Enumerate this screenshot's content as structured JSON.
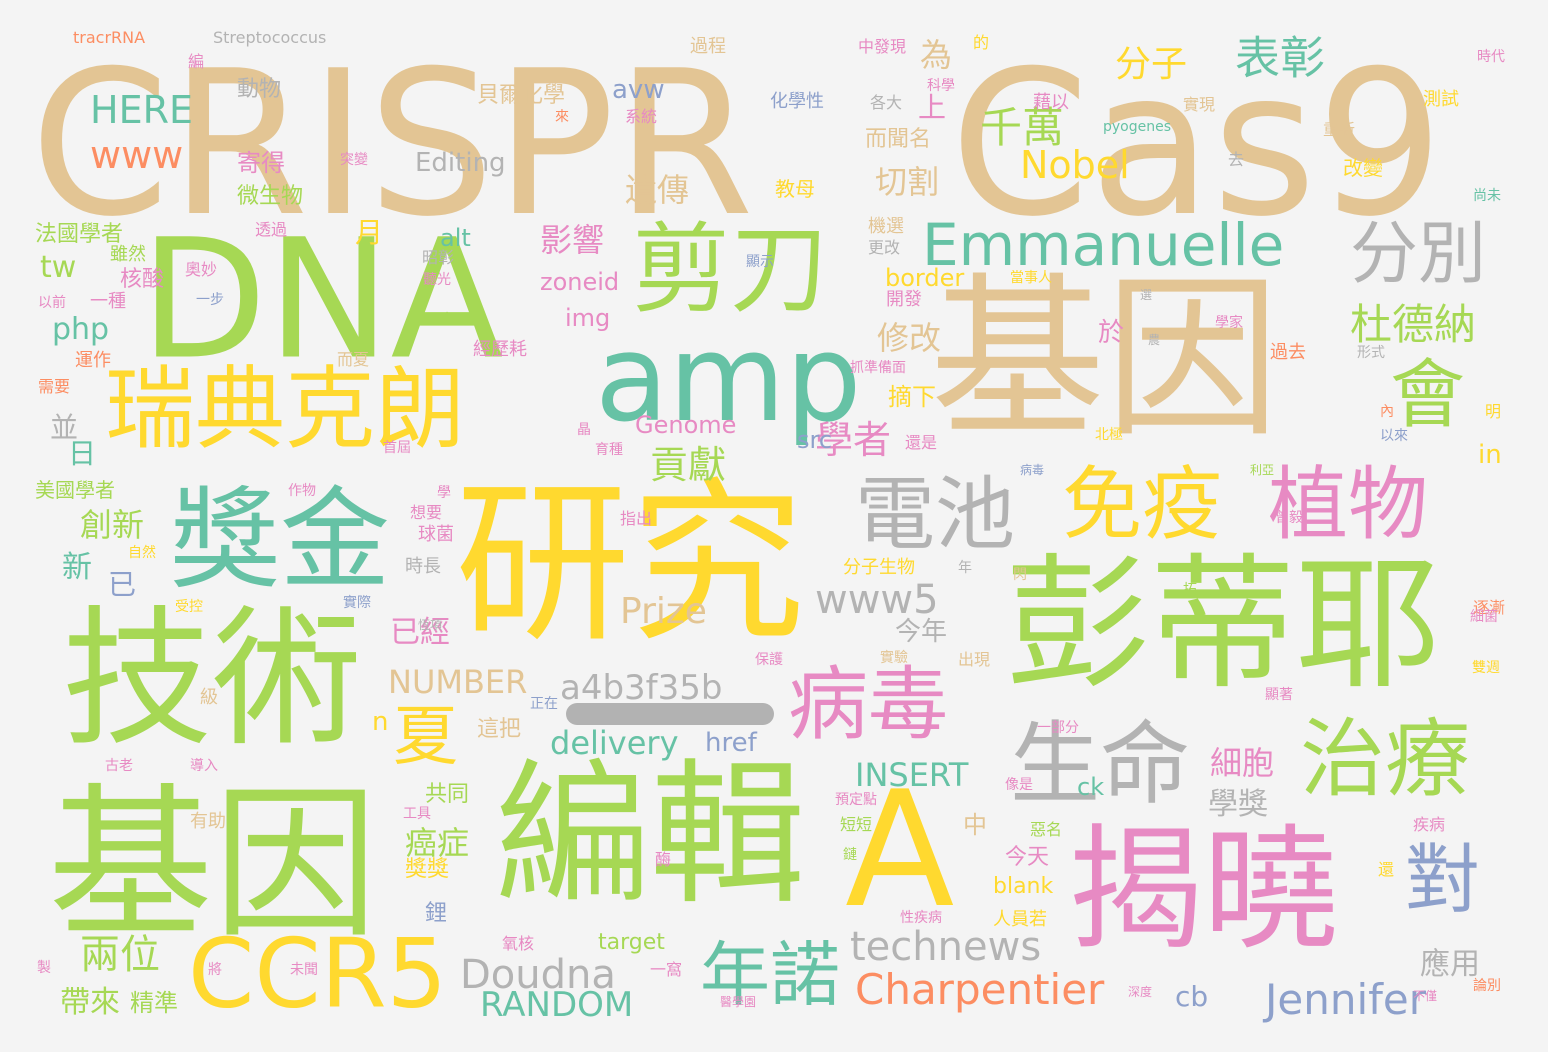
{
  "palette": {
    "tan": "#e3c594",
    "lime": "#a6d854",
    "yellow": "#ffd92f",
    "teal": "#66c2a5",
    "pink": "#e78ac3",
    "gray": "#b3b3b3",
    "orange": "#fc8d62",
    "blue": "#8da0cb"
  },
  "words": [
    {
      "id": "crispr",
      "text": "CRISPR",
      "color": "tan"
    },
    {
      "id": "cas9",
      "text": "Cas9",
      "color": "tan"
    },
    {
      "id": "dna",
      "text": "DNA",
      "color": "lime"
    },
    {
      "id": "jiyin-1",
      "text": "基因",
      "color": "tan"
    },
    {
      "id": "jiyin-2",
      "text": "基因",
      "color": "lime"
    },
    {
      "id": "yanjiu",
      "text": "研究",
      "color": "yellow"
    },
    {
      "id": "jishu",
      "text": "技術",
      "color": "lime"
    },
    {
      "id": "bianji",
      "text": "編輯",
      "color": "lime"
    },
    {
      "id": "pengdiye",
      "text": "彭蒂耶",
      "color": "lime"
    },
    {
      "id": "jiexiao",
      "text": "揭曉",
      "color": "pink"
    },
    {
      "id": "a-letter",
      "text": "A",
      "color": "yellow"
    },
    {
      "id": "jiandao",
      "text": "剪刀",
      "color": "lime"
    },
    {
      "id": "amp",
      "text": "amp",
      "color": "teal"
    },
    {
      "id": "ruidian",
      "text": "瑞典克朗",
      "color": "yellow"
    },
    {
      "id": "jiangjin",
      "text": "獎金",
      "color": "teal"
    },
    {
      "id": "dianchi",
      "text": "電池",
      "color": "gray"
    },
    {
      "id": "mianyi",
      "text": "免疫",
      "color": "yellow"
    },
    {
      "id": "zhiwu",
      "text": "植物",
      "color": "pink"
    },
    {
      "id": "bingdu",
      "text": "病毒",
      "color": "pink"
    },
    {
      "id": "shengming",
      "text": "生命",
      "color": "gray"
    },
    {
      "id": "zhiliao",
      "text": "治療",
      "color": "lime"
    },
    {
      "id": "ccr5",
      "text": "CCR5",
      "color": "yellow"
    },
    {
      "id": "niannuo",
      "text": "年諾",
      "color": "teal"
    },
    {
      "id": "emmanuelle",
      "text": "Emmanuelle",
      "color": "teal"
    },
    {
      "id": "fenbie",
      "text": "分別",
      "color": "gray"
    },
    {
      "id": "hui",
      "text": "會",
      "color": "lime"
    },
    {
      "id": "dui",
      "text": "對",
      "color": "blue"
    },
    {
      "id": "xia",
      "text": "夏",
      "color": "yellow"
    },
    {
      "id": "doudna",
      "text": "Doudna",
      "color": "gray"
    },
    {
      "id": "charpentier",
      "text": "Charpentier",
      "color": "orange"
    },
    {
      "id": "jennifer",
      "text": "Jennifer",
      "color": "blue"
    },
    {
      "id": "technews",
      "text": "technews",
      "color": "gray"
    },
    {
      "id": "random",
      "text": "RANDOM",
      "color": "teal"
    },
    {
      "id": "dudena",
      "text": "杜德納",
      "color": "lime"
    },
    {
      "id": "qianwan",
      "text": "千萬",
      "color": "lime"
    },
    {
      "id": "biaozhang",
      "text": "表彰",
      "color": "teal"
    },
    {
      "id": "fenzi",
      "text": "分子",
      "color": "yellow"
    },
    {
      "id": "www",
      "text": "www",
      "color": "orange"
    },
    {
      "id": "here",
      "text": "HERE",
      "color": "teal"
    },
    {
      "id": "nobel",
      "text": "Nobel",
      "color": "yellow"
    },
    {
      "id": "www5",
      "text": "www5",
      "color": "gray"
    },
    {
      "id": "prize",
      "text": "Prize",
      "color": "tan"
    },
    {
      "id": "a4b3",
      "text": "a4b3f35b",
      "color": "gray"
    },
    {
      "id": "number",
      "text": "NUMBER",
      "color": "tan"
    },
    {
      "id": "delivery",
      "text": "delivery",
      "color": "teal"
    },
    {
      "id": "insert",
      "text": "INSERT",
      "color": "teal"
    },
    {
      "id": "href",
      "text": "href",
      "color": "blue"
    },
    {
      "id": "xuezhe",
      "text": "學者",
      "color": "pink"
    },
    {
      "id": "gongxian",
      "text": "貢獻",
      "color": "lime"
    },
    {
      "id": "liangwei",
      "text": "兩位",
      "color": "lime"
    },
    {
      "id": "cb",
      "text": "cb",
      "color": "blue"
    },
    {
      "id": "editing",
      "text": "Editing",
      "color": "gray"
    },
    {
      "id": "tw",
      "text": "tw",
      "color": "lime"
    },
    {
      "id": "php",
      "text": "php",
      "color": "teal"
    },
    {
      "id": "yingxiang",
      "text": "影響",
      "color": "pink"
    },
    {
      "id": "yichuan",
      "text": "遺傳",
      "color": "tan"
    },
    {
      "id": "qiege",
      "text": "切割",
      "color": "tan"
    },
    {
      "id": "genome",
      "text": "Genome",
      "color": "pink"
    },
    {
      "id": "alt",
      "text": "alt",
      "color": "teal"
    },
    {
      "id": "zoneid",
      "text": "zoneid",
      "color": "pink"
    },
    {
      "id": "img",
      "text": "img",
      "color": "pink"
    },
    {
      "id": "border",
      "text": "border",
      "color": "yellow"
    },
    {
      "id": "avw",
      "text": "avw",
      "color": "blue"
    },
    {
      "id": "src",
      "text": "src",
      "color": "blue"
    },
    {
      "id": "chuangxin",
      "text": "創新",
      "color": "lime"
    },
    {
      "id": "xibao",
      "text": "細胞",
      "color": "pink"
    },
    {
      "id": "xuejiang",
      "text": "學獎",
      "color": "gray"
    },
    {
      "id": "aizheng",
      "text": "癌症",
      "color": "lime"
    },
    {
      "id": "yingyong",
      "text": "應用",
      "color": "gray"
    },
    {
      "id": "dailai",
      "text": "帶來",
      "color": "lime"
    },
    {
      "id": "jingzhun",
      "text": "精準",
      "color": "lime"
    },
    {
      "id": "xiugai",
      "text": "修改",
      "color": "tan"
    },
    {
      "id": "yijing",
      "text": "已經",
      "color": "pink"
    },
    {
      "id": "jinnian",
      "text": "今年",
      "color": "gray"
    },
    {
      "id": "zhaixia",
      "text": "摘下",
      "color": "yellow"
    },
    {
      "id": "ck",
      "text": "ck",
      "color": "teal"
    },
    {
      "id": "zhong",
      "text": "中",
      "color": "tan"
    },
    {
      "id": "jintian",
      "text": "今天",
      "color": "pink"
    },
    {
      "id": "gongtong",
      "text": "共同",
      "color": "lime"
    },
    {
      "id": "zhebai",
      "text": "這把",
      "color": "tan"
    },
    {
      "id": "jiangjiang",
      "text": "獎獎",
      "color": "yellow"
    },
    {
      "id": "blank",
      "text": "blank",
      "color": "yellow"
    },
    {
      "id": "target",
      "text": "target",
      "color": "lime"
    },
    {
      "id": "in",
      "text": "in",
      "color": "yellow"
    },
    {
      "id": "xin",
      "text": "新",
      "color": "teal"
    },
    {
      "id": "ri",
      "text": "日",
      "color": "teal"
    },
    {
      "id": "bing",
      "text": "並",
      "color": "gray"
    },
    {
      "id": "yi",
      "text": "已",
      "color": "blue"
    },
    {
      "id": "n",
      "text": "n",
      "color": "yellow"
    },
    {
      "id": "yu",
      "text": "於",
      "color": "pink"
    },
    {
      "id": "yue",
      "text": "月",
      "color": "yellow"
    },
    {
      "id": "shang",
      "text": "上",
      "color": "pink"
    },
    {
      "id": "wei",
      "text": "為",
      "color": "tan"
    },
    {
      "id": "dongwu",
      "text": "動物",
      "color": "gray"
    },
    {
      "id": "beiguan",
      "text": "貝爾化學",
      "color": "tan"
    },
    {
      "id": "huaxing",
      "text": "化學性",
      "color": "blue"
    },
    {
      "id": "jide",
      "text": "寄得",
      "color": "pink"
    },
    {
      "id": "weishengwu",
      "text": "微生物",
      "color": "lime"
    },
    {
      "id": "jiaomu",
      "text": "教母",
      "color": "yellow"
    },
    {
      "id": "ermingming",
      "text": "而聞名",
      "color": "tan"
    },
    {
      "id": "zhongfaxian",
      "text": "中發現",
      "color": "pink"
    },
    {
      "id": "kexue",
      "text": "科學",
      "color": "pink"
    },
    {
      "id": "geda",
      "text": "各大",
      "color": "gray"
    },
    {
      "id": "shixian",
      "text": "實現",
      "color": "tan"
    },
    {
      "id": "celshi",
      "text": "測試",
      "color": "yellow"
    },
    {
      "id": "chongxin",
      "text": "重新",
      "color": "tan"
    },
    {
      "id": "gaibian",
      "text": "改變",
      "color": "yellow"
    },
    {
      "id": "shangwei",
      "text": "尚未",
      "color": "teal"
    },
    {
      "id": "shidai",
      "text": "時代",
      "color": "pink"
    },
    {
      "id": "guocheng",
      "text": "過程",
      "color": "tan"
    },
    {
      "id": "bian",
      "text": "編",
      "color": "pink"
    },
    {
      "id": "tracrrna",
      "text": "tracrRNA",
      "color": "orange"
    },
    {
      "id": "strep",
      "text": "Streptococcus",
      "color": "gray"
    },
    {
      "id": "pyogenes",
      "text": "pyogenes",
      "color": "teal"
    },
    {
      "id": "de",
      "text": "的",
      "color": "yellow"
    },
    {
      "id": "lai",
      "text": "來",
      "color": "orange"
    },
    {
      "id": "xitong",
      "text": "系統",
      "color": "pink"
    },
    {
      "id": "deyi",
      "text": "藉以",
      "color": "pink"
    },
    {
      "id": "tubian",
      "text": "突變",
      "color": "pink"
    },
    {
      "id": "qu",
      "text": "去",
      "color": "gray"
    },
    {
      "id": "faguo",
      "text": "法國學者",
      "color": "lime"
    },
    {
      "id": "tongguo",
      "text": "透過",
      "color": "pink"
    },
    {
      "id": "suiran",
      "text": "雖然",
      "color": "lime"
    },
    {
      "id": "hesuan",
      "text": "核酸",
      "color": "pink"
    },
    {
      "id": "yibu",
      "text": "一步",
      "color": "blue"
    },
    {
      "id": "aomiao",
      "text": "奧妙",
      "color": "pink"
    },
    {
      "id": "zhaoying",
      "text": "昭彰",
      "color": "gray"
    },
    {
      "id": "xianshi",
      "text": "顯示",
      "color": "blue"
    },
    {
      "id": "jixuan",
      "text": "機選",
      "color": "tan"
    },
    {
      "id": "genggai",
      "text": "更改",
      "color": "gray"
    },
    {
      "id": "kaifa",
      "text": "開發",
      "color": "pink"
    },
    {
      "id": "yunzuo",
      "text": "運作",
      "color": "orange"
    },
    {
      "id": "erxia",
      "text": "而夏",
      "color": "tan"
    },
    {
      "id": "jingli",
      "text": "經歷耗",
      "color": "pink"
    },
    {
      "id": "xuyao",
      "text": "需要",
      "color": "orange"
    },
    {
      "id": "guoqu",
      "text": "過去",
      "color": "orange"
    },
    {
      "id": "xingshi",
      "text": "形式",
      "color": "gray"
    },
    {
      "id": "xuejia",
      "text": "學家",
      "color": "pink"
    },
    {
      "id": "nei",
      "text": "內",
      "color": "orange"
    },
    {
      "id": "yilai",
      "text": "以來",
      "color": "blue"
    },
    {
      "id": "ming",
      "text": "明",
      "color": "yellow"
    },
    {
      "id": "meiguo",
      "text": "美國學者",
      "color": "lime"
    },
    {
      "id": "zhizuo",
      "text": "作物",
      "color": "pink"
    },
    {
      "id": "xue",
      "text": "學",
      "color": "pink"
    },
    {
      "id": "qiujun",
      "text": "球菌",
      "color": "pink"
    },
    {
      "id": "xiangyao",
      "text": "想要",
      "color": "pink"
    },
    {
      "id": "zhichu",
      "text": "指出",
      "color": "pink"
    },
    {
      "id": "shizhang",
      "text": "時長",
      "color": "gray"
    },
    {
      "id": "shiji",
      "text": "實際",
      "color": "blue"
    },
    {
      "id": "fenzishengwu",
      "text": "分子生物",
      "color": "yellow"
    },
    {
      "id": "nian",
      "text": "年",
      "color": "gray"
    },
    {
      "id": "zhujian",
      "text": "逐漸",
      "color": "orange"
    },
    {
      "id": "xijun",
      "text": "細菌",
      "color": "pink"
    },
    {
      "id": "shoukong",
      "text": "受控",
      "color": "yellow"
    },
    {
      "id": "ziran",
      "text": "自然",
      "color": "yellow"
    },
    {
      "id": "baohu",
      "text": "保護",
      "color": "pink"
    },
    {
      "id": "chuxian",
      "text": "出現",
      "color": "tan"
    },
    {
      "id": "shiyan",
      "text": "實驗",
      "color": "tan"
    },
    {
      "id": "ji",
      "text": "級",
      "color": "tan"
    },
    {
      "id": "zhengzai",
      "text": "正在",
      "color": "blue"
    },
    {
      "id": "yibufen",
      "text": "一部分",
      "color": "pink"
    },
    {
      "id": "gulao",
      "text": "古老",
      "color": "pink"
    },
    {
      "id": "daoru",
      "text": "導入",
      "color": "pink"
    },
    {
      "id": "youzhu",
      "text": "有助",
      "color": "tan"
    },
    {
      "id": "gongju",
      "text": "工具",
      "color": "pink"
    },
    {
      "id": "jibing",
      "text": "疾病",
      "color": "pink"
    },
    {
      "id": "yiding",
      "text": "預定點",
      "color": "pink"
    },
    {
      "id": "duanduan",
      "text": "短短",
      "color": "lime"
    },
    {
      "id": "lian",
      "text": "鏈",
      "color": "lime"
    },
    {
      "id": "emingm",
      "text": "惡名",
      "color": "lime"
    },
    {
      "id": "xiangshi",
      "text": "像是",
      "color": "pink"
    },
    {
      "id": "mei",
      "text": "酶",
      "color": "pink"
    },
    {
      "id": "yanghe",
      "text": "氧核",
      "color": "pink"
    },
    {
      "id": "yiwo",
      "text": "一窩",
      "color": "pink"
    },
    {
      "id": "li",
      "text": "鋰",
      "color": "blue"
    },
    {
      "id": "renyuan",
      "text": "人員若",
      "color": "yellow"
    },
    {
      "id": "weilai",
      "text": "未聞",
      "color": "pink"
    },
    {
      "id": "zhi",
      "text": "製",
      "color": "pink"
    },
    {
      "id": "jiang",
      "text": "將",
      "color": "pink"
    },
    {
      "id": "yixue",
      "text": "醫學園",
      "color": "pink"
    },
    {
      "id": "lunbie",
      "text": "論別",
      "color": "orange"
    },
    {
      "id": "buzhi",
      "text": "不僅",
      "color": "pink"
    },
    {
      "id": "shengdu",
      "text": "深度",
      "color": "pink"
    },
    {
      "id": "huan",
      "text": "還",
      "color": "yellow"
    },
    {
      "id": "nong",
      "text": "農",
      "color": "gray"
    },
    {
      "id": "dangshi",
      "text": "當事人",
      "color": "yellow"
    },
    {
      "id": "yibing",
      "text": "一種",
      "color": "pink"
    },
    {
      "id": "yiqian",
      "text": "以前",
      "color": "pink"
    },
    {
      "id": "xuan",
      "text": "選",
      "color": "gray"
    },
    {
      "id": "zhuzhun",
      "text": "抓準備面",
      "color": "pink"
    },
    {
      "id": "bingdu2",
      "text": "病毒",
      "color": "blue"
    },
    {
      "id": "jixing",
      "text": "性疾病",
      "color": "pink"
    },
    {
      "id": "haishi",
      "text": "還是",
      "color": "pink"
    },
    {
      "id": "quanshi",
      "text": "全面",
      "color": "lime"
    },
    {
      "id": "beiwu",
      "text": "北極",
      "color": "yellow"
    },
    {
      "id": "yuzhong",
      "text": "育種",
      "color": "pink"
    },
    {
      "id": "zhuliu",
      "text": "聽光",
      "color": "pink"
    },
    {
      "id": "jingxiang",
      "text": "晶",
      "color": "pink"
    },
    {
      "id": "shoujie",
      "text": "首屆",
      "color": "pink"
    },
    {
      "id": "gengxian",
      "text": "恆項",
      "color": "gray"
    },
    {
      "id": "xiji",
      "text": "顯著",
      "color": "pink"
    },
    {
      "id": "dailai2",
      "text": "雙週",
      "color": "yellow"
    },
    {
      "id": "renlei",
      "text": "利亞",
      "color": "lime"
    },
    {
      "id": "shanlai",
      "text": "閃",
      "color": "tan"
    },
    {
      "id": "tuo",
      "text": "拓",
      "color": "lime"
    },
    {
      "id": "zhiye",
      "text": "曾毅",
      "color": "pink"
    }
  ]
}
